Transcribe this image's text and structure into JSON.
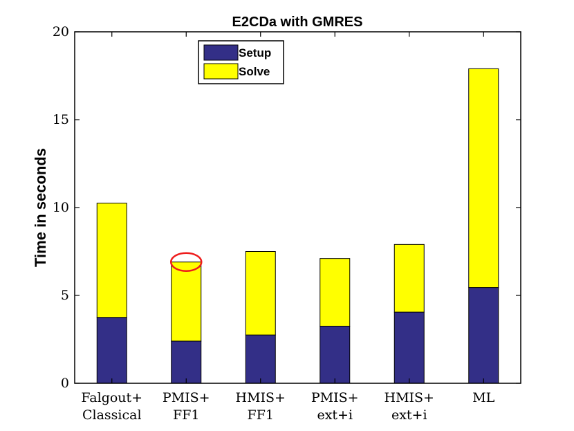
{
  "chart_data": {
    "type": "bar",
    "stacked": true,
    "title": "E2CDa with GMRES",
    "xlabel": "",
    "ylabel": "Time in seconds",
    "ylim": [
      0,
      20
    ],
    "yticks": [
      "0",
      "5",
      "10",
      "15",
      "20"
    ],
    "categories": [
      [
        "Falgout+",
        "Classical"
      ],
      [
        "PMIS+",
        "FF1"
      ],
      [
        "HMIS+",
        "FF1"
      ],
      [
        "PMIS+",
        "ext+i"
      ],
      [
        "HMIS+",
        "ext+i"
      ],
      [
        "ML"
      ]
    ],
    "series": [
      {
        "name": "Setup",
        "color": "#332f87",
        "values": [
          3.75,
          2.4,
          2.75,
          3.25,
          4.05,
          5.45
        ]
      },
      {
        "name": "Solve",
        "color": "#ffff00",
        "values": [
          6.5,
          4.5,
          4.75,
          3.85,
          3.85,
          12.45
        ]
      }
    ],
    "legend": {
      "position": "top-left-inside"
    },
    "grid": false,
    "annotations": [
      {
        "type": "ellipse-highlight",
        "category_index": 1,
        "at_value": 6.9,
        "color": "#ee1c1c"
      }
    ]
  }
}
